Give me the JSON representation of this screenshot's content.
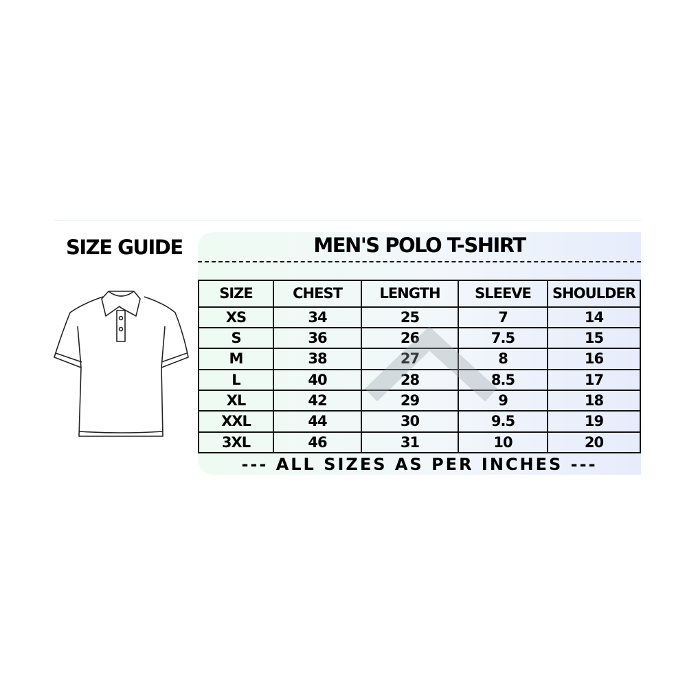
{
  "left": {
    "title": "SIZE GUIDE"
  },
  "chart": {
    "title": "MEN'S POLO T-SHIRT",
    "headers": [
      "SIZE",
      "CHEST",
      "LENGTH",
      "SLEEVE",
      "SHOULDER"
    ],
    "rows": [
      [
        "XS",
        "34",
        "25",
        "7",
        "14"
      ],
      [
        "S",
        "36",
        "26",
        "7.5",
        "15"
      ],
      [
        "M",
        "38",
        "27",
        "8",
        "16"
      ],
      [
        "L",
        "40",
        "28",
        "8.5",
        "17"
      ],
      [
        "XL",
        "42",
        "29",
        "9",
        "18"
      ],
      [
        "XXL",
        "44",
        "30",
        "9.5",
        "19"
      ],
      [
        "3XL",
        "46",
        "31",
        "10",
        "20"
      ]
    ],
    "footer": "--- ALL SIZES AS PER INCHES ---"
  },
  "colors": {
    "panel_start": "#eefbf2",
    "panel_end": "#e6ecfb",
    "text": "#000000"
  }
}
